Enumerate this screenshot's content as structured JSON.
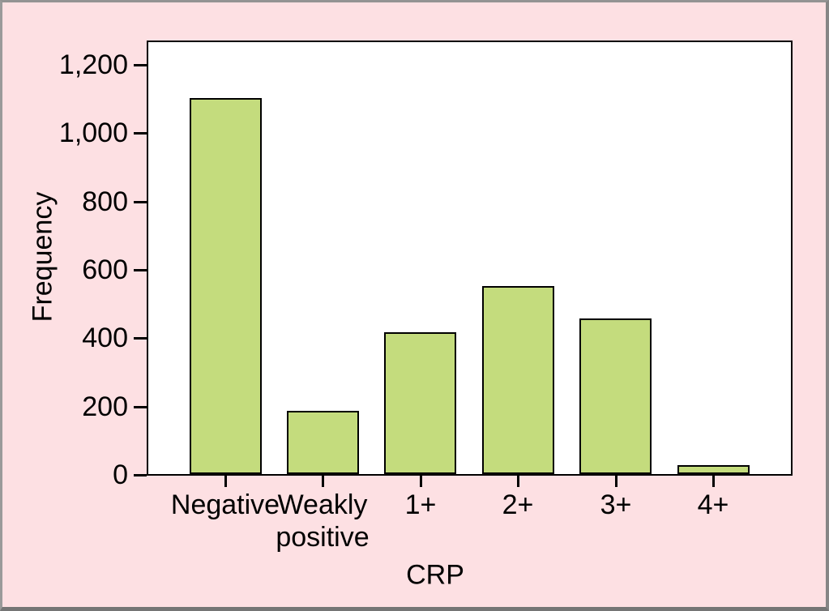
{
  "figure": {
    "background_color": "#fde0e3",
    "plot_background_color": "#ffffff",
    "outer_border_color": "#8a8a8a",
    "axis_color": "#000000",
    "text_color": "#000000"
  },
  "chart_data": {
    "type": "bar",
    "title": "",
    "categories": [
      "Negative",
      "Weakly positive",
      "1+",
      "2+",
      "3+",
      "4+"
    ],
    "values": [
      1100,
      185,
      415,
      550,
      455,
      25
    ],
    "xlabel": "CRP",
    "ylabel": "Frequency",
    "ylim": [
      0,
      1270
    ],
    "yticks": [
      0,
      200,
      400,
      600,
      800,
      1000,
      1200
    ],
    "ytick_labels": [
      "0",
      "200",
      "400",
      "600",
      "800",
      "1,000",
      "1,200"
    ],
    "bar_color": "#c4dc7d",
    "bar_border_color": "#000000",
    "grid": "off",
    "legend": "none"
  }
}
